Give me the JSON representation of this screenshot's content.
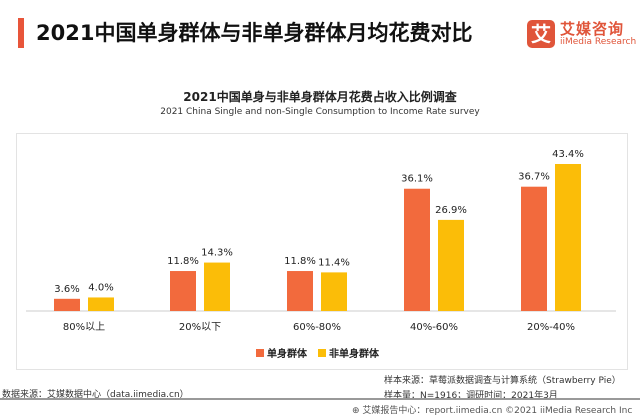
{
  "header": {
    "title": "2021中国单身群体与非单身群体月均花费对比"
  },
  "brand": {
    "logo_char": "艾",
    "name_cn": "艾媒咨询",
    "name_en": "iiMedia Research"
  },
  "chart_data": {
    "type": "bar",
    "title": "2021中国单身与非单身群体月花费占收入比例调查",
    "subtitle": "2021 China Single and non-Single Consumption to Income Rate survey",
    "categories": [
      "80%以上",
      "20%以下",
      "60%-80%",
      "40%-60%",
      "20%-40%"
    ],
    "series": [
      {
        "name": "单身群体",
        "values": [
          3.6,
          11.8,
          11.8,
          36.1,
          36.7
        ],
        "color": "#f26a3d"
      },
      {
        "name": "非单身群体",
        "values": [
          4.0,
          14.3,
          11.4,
          26.9,
          43.4
        ],
        "color": "#fbbd08"
      }
    ],
    "unit": "%",
    "legend": "bottom",
    "grid": false
  },
  "footer": {
    "source": "数据来源：艾媒数据中心（data.iimedia.cn）",
    "sample_source": "样本来源：草莓派数据调查与计算系统（Strawberry Pie）",
    "sample_size": "样本量：N=1916；调研时间：2021年3月",
    "copyright": "艾媒报告中心：report.iimedia.cn  ©2021  iiMedia Research Inc"
  }
}
